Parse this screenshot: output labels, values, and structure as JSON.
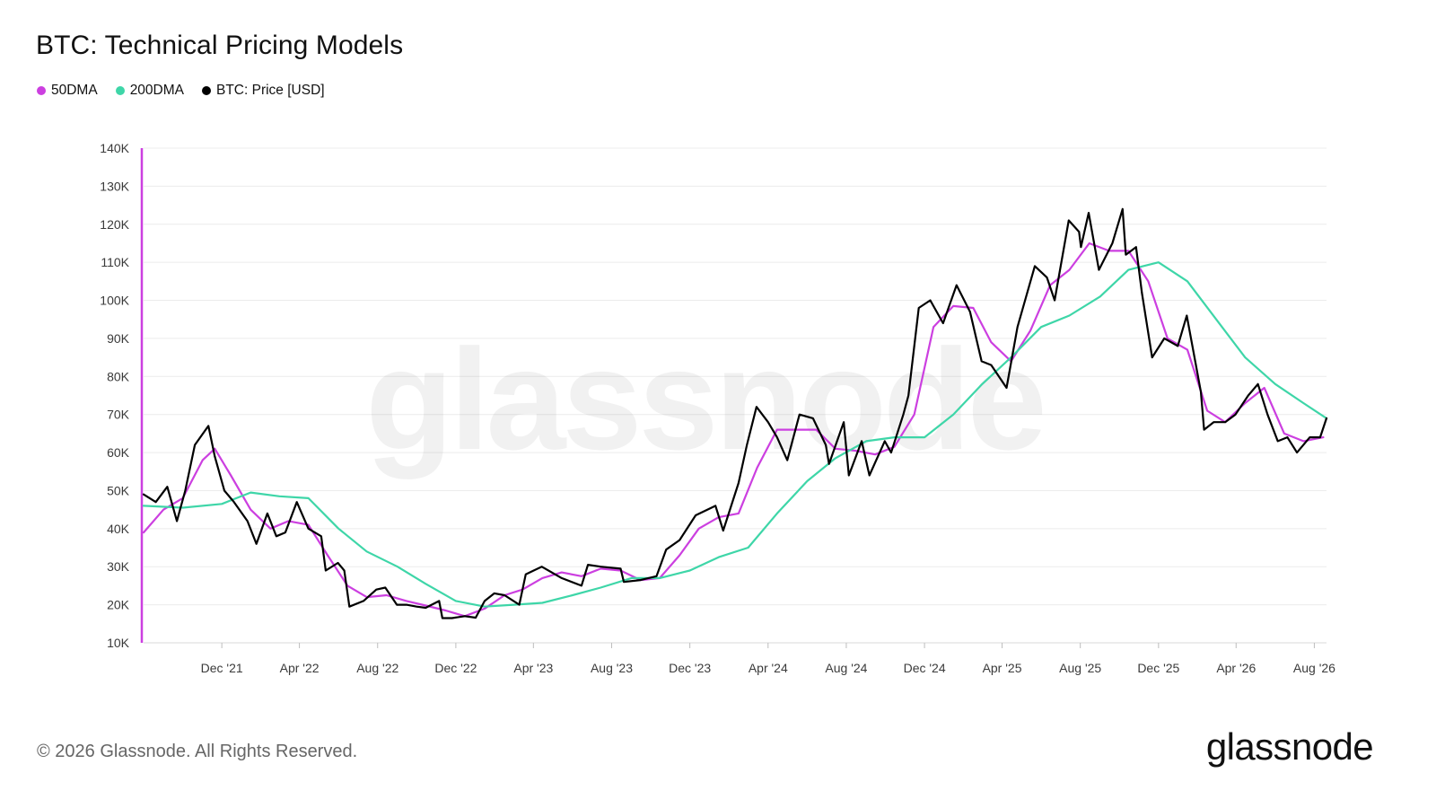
{
  "header": {
    "title": "BTC: Technical Pricing Models"
  },
  "watermark": "glassnode",
  "footer": {
    "copyright": "© 2026 Glassnode. All Rights Reserved.",
    "brand": "glassnode"
  },
  "colors": {
    "dma50": "#cc3fe0",
    "dma200": "#3ed6a8",
    "price": "#000000",
    "grid": "#ececec"
  },
  "chart_data": {
    "type": "line",
    "title": "BTC: Technical Pricing Models",
    "xlabel": "",
    "ylabel": "",
    "ylim": [
      10000,
      140000
    ],
    "xlim": [
      "2021-08-01",
      "2026-08-20"
    ],
    "y_scale": "linear",
    "grid": true,
    "legend_position": "top-left",
    "y_ticks": [
      10000,
      20000,
      30000,
      40000,
      50000,
      60000,
      70000,
      80000,
      90000,
      100000,
      110000,
      120000,
      130000,
      140000
    ],
    "y_tick_labels": [
      "10K",
      "20K",
      "30K",
      "40K",
      "50K",
      "60K",
      "70K",
      "80K",
      "90K",
      "100K",
      "110K",
      "120K",
      "130K",
      "140K"
    ],
    "x_ticks": [
      "2021-12-01",
      "2022-04-01",
      "2022-08-01",
      "2022-12-01",
      "2023-04-01",
      "2023-08-01",
      "2023-12-01",
      "2024-04-01",
      "2024-08-01",
      "2024-12-01",
      "2025-04-01",
      "2025-08-01",
      "2025-12-01",
      "2026-04-01",
      "2026-08-01"
    ],
    "x_tick_labels": [
      "Dec '21",
      "Apr '22",
      "Aug '22",
      "Dec '22",
      "Apr '23",
      "Aug '23",
      "Dec '23",
      "Apr '24",
      "Aug '24",
      "Dec '24",
      "Apr '25",
      "Aug '25",
      "Dec '25",
      "Apr '26",
      "Aug '26"
    ],
    "series": [
      {
        "name": "50DMA",
        "color": "#cc3fe0",
        "x": [
          "2021-08-01",
          "2021-09-01",
          "2021-10-01",
          "2021-11-01",
          "2021-11-20",
          "2021-12-15",
          "2022-01-15",
          "2022-02-15",
          "2022-03-15",
          "2022-04-15",
          "2022-05-15",
          "2022-06-15",
          "2022-07-15",
          "2022-08-15",
          "2022-09-15",
          "2022-10-15",
          "2022-11-15",
          "2022-12-15",
          "2023-01-15",
          "2023-02-15",
          "2023-03-15",
          "2023-04-15",
          "2023-05-15",
          "2023-06-15",
          "2023-07-15",
          "2023-08-15",
          "2023-09-15",
          "2023-10-15",
          "2023-11-15",
          "2023-12-15",
          "2024-01-15",
          "2024-02-15",
          "2024-03-15",
          "2024-04-15",
          "2024-05-15",
          "2024-06-15",
          "2024-07-15",
          "2024-08-15",
          "2024-09-15",
          "2024-10-15",
          "2024-11-15",
          "2024-12-15",
          "2025-01-15",
          "2025-02-15",
          "2025-03-15",
          "2025-04-15",
          "2025-05-15",
          "2025-06-15",
          "2025-07-15",
          "2025-08-15",
          "2025-09-15",
          "2025-10-15",
          "2025-11-15",
          "2025-12-15",
          "2026-01-15",
          "2026-02-15",
          "2026-03-15",
          "2026-04-15",
          "2026-05-15",
          "2026-06-15",
          "2026-07-15",
          "2026-08-15"
        ],
        "y": [
          39000,
          45000,
          48000,
          58000,
          61000,
          54000,
          45000,
          40000,
          42000,
          41000,
          33000,
          25000,
          22000,
          22500,
          21000,
          19800,
          18500,
          17000,
          19000,
          22500,
          24000,
          27000,
          28500,
          27500,
          29500,
          29000,
          26500,
          27000,
          33000,
          40000,
          43000,
          44000,
          56000,
          66000,
          66000,
          66000,
          61000,
          60500,
          59500,
          61500,
          70000,
          93000,
          98500,
          98000,
          89000,
          84000,
          92000,
          104000,
          108000,
          115000,
          113000,
          113000,
          105000,
          90000,
          87000,
          71000,
          68000,
          73000,
          77000,
          65000,
          63000,
          64000
        ]
      },
      {
        "name": "200DMA",
        "color": "#3ed6a8",
        "x": [
          "2021-08-01",
          "2021-10-01",
          "2021-12-01",
          "2022-01-15",
          "2022-03-01",
          "2022-04-15",
          "2022-06-01",
          "2022-07-15",
          "2022-09-01",
          "2022-10-15",
          "2022-12-01",
          "2023-01-15",
          "2023-03-01",
          "2023-04-15",
          "2023-06-01",
          "2023-07-15",
          "2023-09-01",
          "2023-10-15",
          "2023-12-01",
          "2024-01-15",
          "2024-03-01",
          "2024-04-15",
          "2024-06-01",
          "2024-07-15",
          "2024-09-01",
          "2024-10-15",
          "2024-12-01",
          "2025-01-15",
          "2025-03-01",
          "2025-04-15",
          "2025-06-01",
          "2025-07-15",
          "2025-09-01",
          "2025-10-15",
          "2025-12-01",
          "2026-01-15",
          "2026-03-01",
          "2026-04-15",
          "2026-06-01",
          "2026-07-15",
          "2026-08-20"
        ],
        "y": [
          46000,
          45500,
          46500,
          49500,
          48500,
          48000,
          40000,
          34000,
          30000,
          25500,
          21000,
          19500,
          20000,
          20500,
          22500,
          24500,
          27000,
          27000,
          29000,
          32500,
          35000,
          44000,
          52500,
          58500,
          63000,
          64000,
          64000,
          70000,
          78000,
          85000,
          93000,
          96000,
          101000,
          108000,
          110000,
          105000,
          95000,
          85000,
          78000,
          73000,
          69000
        ]
      },
      {
        "name": "BTC: Price [USD]",
        "color": "#000000",
        "x": [
          "2021-08-01",
          "2021-08-20",
          "2021-09-07",
          "2021-09-22",
          "2021-10-05",
          "2021-10-20",
          "2021-11-10",
          "2021-11-20",
          "2021-12-05",
          "2021-12-20",
          "2022-01-10",
          "2022-01-24",
          "2022-02-10",
          "2022-02-24",
          "2022-03-10",
          "2022-03-28",
          "2022-04-15",
          "2022-05-05",
          "2022-05-12",
          "2022-05-31",
          "2022-06-10",
          "2022-06-18",
          "2022-07-10",
          "2022-07-30",
          "2022-08-13",
          "2022-08-31",
          "2022-09-15",
          "2022-10-01",
          "2022-10-15",
          "2022-11-05",
          "2022-11-10",
          "2022-11-25",
          "2022-12-15",
          "2023-01-01",
          "2023-01-15",
          "2023-01-30",
          "2023-02-15",
          "2023-03-10",
          "2023-03-20",
          "2023-04-14",
          "2023-05-15",
          "2023-06-15",
          "2023-06-25",
          "2023-07-15",
          "2023-08-15",
          "2023-08-20",
          "2023-09-15",
          "2023-10-10",
          "2023-10-25",
          "2023-11-15",
          "2023-12-10",
          "2024-01-10",
          "2024-01-22",
          "2024-02-15",
          "2024-02-28",
          "2024-03-14",
          "2024-04-01",
          "2024-04-15",
          "2024-05-01",
          "2024-05-20",
          "2024-06-10",
          "2024-06-30",
          "2024-07-05",
          "2024-07-28",
          "2024-08-05",
          "2024-08-25",
          "2024-09-06",
          "2024-09-30",
          "2024-10-10",
          "2024-10-29",
          "2024-11-06",
          "2024-11-22",
          "2024-12-10",
          "2024-12-30",
          "2025-01-20",
          "2025-02-10",
          "2025-02-28",
          "2025-03-15",
          "2025-04-08",
          "2025-04-25",
          "2025-05-22",
          "2025-06-10",
          "2025-06-22",
          "2025-07-14",
          "2025-07-30",
          "2025-08-02",
          "2025-08-14",
          "2025-08-30",
          "2025-09-20",
          "2025-10-06",
          "2025-10-11",
          "2025-10-27",
          "2025-11-05",
          "2025-11-21",
          "2025-12-10",
          "2025-12-31",
          "2026-01-14",
          "2026-02-05",
          "2026-02-10",
          "2026-02-25",
          "2026-03-15",
          "2026-03-31",
          "2026-04-20",
          "2026-05-05",
          "2026-05-20",
          "2026-06-05",
          "2026-06-20",
          "2026-07-05",
          "2026-07-25",
          "2026-08-10",
          "2026-08-20"
        ],
        "y": [
          49000,
          47000,
          51000,
          42000,
          50000,
          62000,
          67000,
          59000,
          50000,
          47000,
          42000,
          36000,
          44000,
          38000,
          39000,
          47000,
          40000,
          38000,
          29000,
          31000,
          29000,
          19500,
          21000,
          24000,
          24500,
          20000,
          20000,
          19500,
          19200,
          21000,
          16500,
          16500,
          17000,
          16600,
          21000,
          23000,
          22500,
          20000,
          28000,
          30000,
          27000,
          25000,
          30500,
          30000,
          29500,
          26000,
          26500,
          27500,
          34500,
          37000,
          43500,
          46000,
          39500,
          52000,
          62000,
          72000,
          68000,
          64000,
          58000,
          70000,
          69000,
          62000,
          57000,
          68000,
          54000,
          63000,
          54000,
          63000,
          60000,
          70000,
          75000,
          98000,
          100000,
          94000,
          104000,
          97000,
          84000,
          83000,
          77000,
          93000,
          109000,
          106000,
          100000,
          121000,
          118000,
          114000,
          123000,
          108000,
          115000,
          124000,
          112000,
          114000,
          102000,
          85000,
          90000,
          88000,
          96000,
          76000,
          66000,
          68000,
          68000,
          70000,
          75000,
          78000,
          70000,
          63000,
          64000,
          60000,
          64000,
          64000,
          69000
        ]
      }
    ]
  }
}
